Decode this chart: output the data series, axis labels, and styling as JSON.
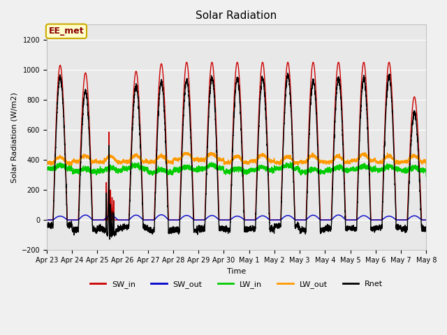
{
  "title": "Solar Radiation",
  "ylabel": "Solar Radiation (W/m2)",
  "xlabel": "Time",
  "ylim": [
    -200,
    1300
  ],
  "yticks": [
    -200,
    0,
    200,
    400,
    600,
    800,
    1000,
    1200
  ],
  "n_days": 15,
  "tick_labels": [
    "Apr 23",
    "Apr 24",
    "Apr 25",
    "Apr 26",
    "Apr 27",
    "Apr 28",
    "Apr 29",
    "Apr 30",
    "May 1",
    "May 2",
    "May 3",
    "May 4",
    "May 5",
    "May 6",
    "May 7",
    "May 8"
  ],
  "annotation": "EE_met",
  "fig_facecolor": "#f0f0f0",
  "ax_facecolor": "#e8e8e8",
  "grid_color": "white",
  "legend_items": [
    {
      "label": "SW_in",
      "color": "#cc0000"
    },
    {
      "label": "SW_out",
      "color": "#0000cc"
    },
    {
      "label": "LW_in",
      "color": "#00cc00"
    },
    {
      "label": "LW_out",
      "color": "#ff9900"
    },
    {
      "label": "Rnet",
      "color": "#000000"
    }
  ],
  "title_fontsize": 11,
  "label_fontsize": 8,
  "tick_fontsize": 7,
  "legend_fontsize": 8,
  "annot_fontsize": 9,
  "line_width": 1.0
}
